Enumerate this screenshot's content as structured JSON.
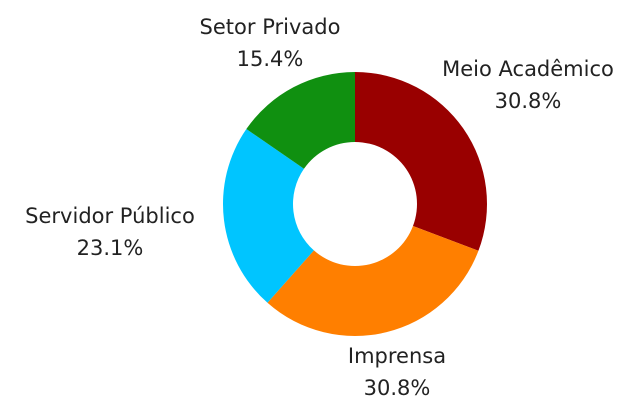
{
  "chart_data": {
    "type": "donut",
    "categories": [
      "Meio Acadêmico",
      "Imprensa",
      "Servidor Público",
      "Setor Privado"
    ],
    "values": [
      30.8,
      30.8,
      23.1,
      15.4
    ],
    "value_labels": [
      "30.8%",
      "30.8%",
      "23.1%",
      "15.4%"
    ],
    "colors": [
      "#990000",
      "#ff7f00",
      "#00c5ff",
      "#109010"
    ]
  }
}
